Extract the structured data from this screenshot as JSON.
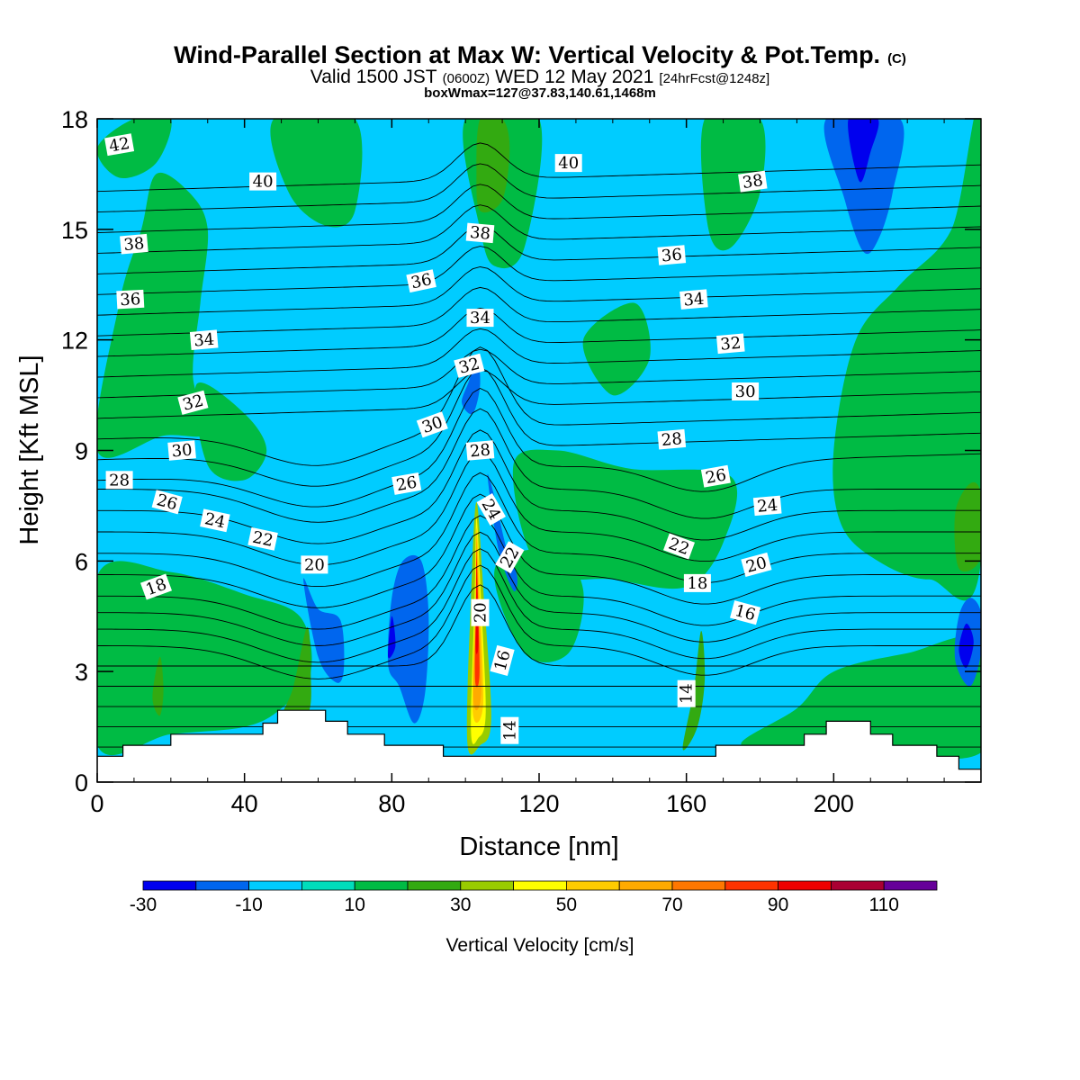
{
  "header": {
    "title_main": "Wind-Parallel Section at Max W: Vertical Velocity & Pot.Temp.",
    "title_mark": "(C)",
    "valid_a": "Valid 1500 JST",
    "valid_b": "(0600Z)",
    "valid_c": "WED 12 May 2021",
    "valid_d": "[24hrFcst@1248z]",
    "box_info": "boxWmax=127@37.83,140.61,1468m"
  },
  "colorbar": {
    "title": "Vertical Velocity [cm/s]",
    "colors": [
      "#0000ee",
      "#0066ee",
      "#00ccff",
      "#00ddbb",
      "#00bb44",
      "#33aa11",
      "#99cc00",
      "#ffff00",
      "#ffcc00",
      "#ffaa00",
      "#ff7700",
      "#ff3300",
      "#ee0000",
      "#aa0033",
      "#660099"
    ],
    "tick_labels": [
      "-30",
      "-10",
      "10",
      "30",
      "50",
      "70",
      "90",
      "110"
    ],
    "tick_values": [
      -30,
      -10,
      10,
      30,
      50,
      70,
      90,
      110
    ]
  },
  "chart_data": {
    "type": "heatmap",
    "xlabel": "Distance [nm]",
    "ylabel": "Height [Kft MSL]",
    "xlim": [
      0,
      240
    ],
    "ylim": [
      0,
      18
    ],
    "xticks": [
      "0",
      "40",
      "80",
      "120",
      "160",
      "200"
    ],
    "xtick_values": [
      0,
      40,
      80,
      120,
      160,
      200
    ],
    "yticks": [
      "0",
      "3",
      "6",
      "9",
      "12",
      "15",
      "18"
    ],
    "ytick_values": [
      0,
      3,
      6,
      9,
      12,
      15,
      18
    ],
    "background_color": "#00ccff",
    "terrain_steps": [
      [
        0,
        0.7
      ],
      [
        7,
        0.7
      ],
      [
        7,
        1.0
      ],
      [
        20,
        1.0
      ],
      [
        20,
        1.3
      ],
      [
        45,
        1.3
      ],
      [
        45,
        1.6
      ],
      [
        49,
        1.6
      ],
      [
        49,
        1.95
      ],
      [
        62,
        1.95
      ],
      [
        62,
        1.65
      ],
      [
        68,
        1.65
      ],
      [
        68,
        1.3
      ],
      [
        78,
        1.3
      ],
      [
        78,
        1.0
      ],
      [
        94,
        1.0
      ],
      [
        94,
        0.7
      ],
      [
        168,
        0.7
      ],
      [
        168,
        1.0
      ],
      [
        192,
        1.0
      ],
      [
        192,
        1.3
      ],
      [
        198,
        1.3
      ],
      [
        198,
        1.65
      ],
      [
        210,
        1.65
      ],
      [
        210,
        1.3
      ],
      [
        216,
        1.3
      ],
      [
        216,
        1.0
      ],
      [
        228,
        1.0
      ],
      [
        228,
        0.7
      ],
      [
        234,
        0.7
      ],
      [
        234,
        0.35
      ],
      [
        240,
        0.35
      ]
    ],
    "wind_cells": [
      {
        "w": 15,
        "pts": [
          [
            0,
            1
          ],
          [
            0,
            5.6
          ],
          [
            20,
            5.7
          ],
          [
            40,
            5.1
          ],
          [
            55,
            4.5
          ],
          [
            58,
            3
          ],
          [
            50,
            2
          ],
          [
            40,
            1.5
          ],
          [
            20,
            1.3
          ]
        ]
      },
      {
        "w": 15,
        "pts": [
          [
            0,
            9
          ],
          [
            6,
            13
          ],
          [
            12,
            15
          ],
          [
            16,
            16.5
          ],
          [
            25,
            16
          ],
          [
            30,
            15
          ],
          [
            28,
            13
          ],
          [
            26,
            11
          ],
          [
            30,
            9.5
          ],
          [
            18,
            9.4
          ]
        ]
      },
      {
        "w": 15,
        "pts": [
          [
            48,
            18
          ],
          [
            70,
            18
          ],
          [
            70,
            15.5
          ],
          [
            62,
            15.1
          ],
          [
            52,
            16
          ]
        ]
      },
      {
        "w": 15,
        "pts": [
          [
            27,
            10.8
          ],
          [
            40,
            10
          ],
          [
            46,
            9
          ],
          [
            40,
            8.2
          ],
          [
            30,
            8.6
          ]
        ]
      },
      {
        "w": 15,
        "pts": [
          [
            0,
            17.2
          ],
          [
            10,
            18
          ],
          [
            20,
            18
          ],
          [
            16,
            16.8
          ],
          [
            6,
            16.4
          ]
        ]
      },
      {
        "w": 15,
        "pts": [
          [
            100,
            18
          ],
          [
            120,
            18
          ],
          [
            116,
            14.5
          ],
          [
            108,
            14
          ],
          [
            104,
            15
          ]
        ]
      },
      {
        "w": 15,
        "pts": [
          [
            113,
            8.6
          ],
          [
            125,
            9
          ],
          [
            145,
            8.5
          ],
          [
            172,
            8.3
          ],
          [
            170,
            6.5
          ],
          [
            160,
            5.3
          ],
          [
            140,
            5.5
          ],
          [
            120,
            5.8
          ]
        ]
      },
      {
        "w": 15,
        "pts": [
          [
            108,
            5.8
          ],
          [
            124,
            6.3
          ],
          [
            132,
            5.2
          ],
          [
            128,
            3.5
          ],
          [
            116,
            3.5
          ]
        ]
      },
      {
        "w": 15,
        "pts": [
          [
            165,
            18
          ],
          [
            180,
            18
          ],
          [
            180,
            16
          ],
          [
            172,
            14.5
          ],
          [
            166,
            15
          ]
        ]
      },
      {
        "w": 15,
        "pts": [
          [
            200,
            9
          ],
          [
            206,
            12
          ],
          [
            218,
            13.5
          ],
          [
            232,
            15
          ],
          [
            240,
            18
          ],
          [
            240,
            6
          ],
          [
            226,
            5.5
          ],
          [
            212,
            6
          ],
          [
            202,
            7
          ]
        ]
      },
      {
        "w": 15,
        "pts": [
          [
            175,
            1
          ],
          [
            190,
            2
          ],
          [
            200,
            3
          ],
          [
            220,
            3.5
          ],
          [
            240,
            3.8
          ],
          [
            240,
            0.8
          ],
          [
            200,
            1
          ]
        ]
      },
      {
        "w": 15,
        "pts": [
          [
            132,
            12
          ],
          [
            146,
            13
          ],
          [
            150,
            11.5
          ],
          [
            140,
            10.5
          ]
        ]
      },
      {
        "w": 25,
        "pts": [
          [
            48,
            1.3
          ],
          [
            53,
            2.5
          ],
          [
            57,
            4.2
          ],
          [
            58,
            3.0
          ],
          [
            57,
            1.8
          ]
        ]
      },
      {
        "w": 25,
        "pts": [
          [
            15,
            2.3
          ],
          [
            17,
            3.4
          ],
          [
            18,
            2.5
          ],
          [
            17,
            1.8
          ]
        ]
      },
      {
        "w": 25,
        "pts": [
          [
            104,
            15.5
          ],
          [
            110,
            15.8
          ],
          [
            112,
            17.2
          ],
          [
            110,
            18
          ],
          [
            104,
            18
          ],
          [
            103,
            16.5
          ]
        ]
      },
      {
        "w": 25,
        "pts": [
          [
            159,
            0.9
          ],
          [
            162,
            2.5
          ],
          [
            164,
            4.1
          ],
          [
            165,
            2.8
          ],
          [
            163,
            1.5
          ]
        ]
      },
      {
        "w": 25,
        "pts": [
          [
            234,
            5.8
          ],
          [
            240,
            6.1
          ],
          [
            240,
            7.8
          ],
          [
            237,
            8.1
          ],
          [
            233,
            7.3
          ]
        ]
      },
      {
        "w": -15,
        "pts": [
          [
            79,
            3.2
          ],
          [
            80,
            5
          ],
          [
            83,
            6
          ],
          [
            88,
            6
          ],
          [
            90,
            4.5
          ],
          [
            89,
            2.4
          ],
          [
            86,
            1.6
          ],
          [
            82,
            2.6
          ]
        ]
      },
      {
        "w": -15,
        "pts": [
          [
            56,
            5.5
          ],
          [
            60,
            4.7
          ],
          [
            66,
            4.4
          ],
          [
            67,
            3.1
          ],
          [
            65,
            2.7
          ],
          [
            60,
            3.4
          ]
        ]
      },
      {
        "w": -15,
        "pts": [
          [
            99,
            10.3
          ],
          [
            101,
            10.9
          ],
          [
            103,
            11.6
          ],
          [
            104,
            10.8
          ],
          [
            102,
            10
          ]
        ]
      },
      {
        "w": -15,
        "pts": [
          [
            106,
            8.3
          ],
          [
            108,
            7.7
          ],
          [
            111,
            6.4
          ],
          [
            114,
            5.6
          ],
          [
            113,
            5.2
          ],
          [
            109,
            6.3
          ]
        ]
      },
      {
        "w": -15,
        "pts": [
          [
            198,
            18
          ],
          [
            218,
            18
          ],
          [
            216,
            16
          ],
          [
            212,
            14.7
          ],
          [
            208,
            14.4
          ],
          [
            203,
            15.8
          ]
        ]
      },
      {
        "w": -15,
        "pts": [
          [
            233,
            3.3
          ],
          [
            234,
            4.5
          ],
          [
            237,
            5
          ],
          [
            240,
            4.6
          ],
          [
            240,
            3.5
          ],
          [
            237,
            2.6
          ]
        ]
      },
      {
        "w": -25,
        "pts": [
          [
            204,
            18
          ],
          [
            212,
            18
          ],
          [
            210,
            17.1
          ],
          [
            207,
            16.3
          ]
        ]
      },
      {
        "w": -25,
        "pts": [
          [
            234,
            3.6
          ],
          [
            236,
            4.3
          ],
          [
            238,
            3.8
          ],
          [
            236,
            3.1
          ]
        ]
      },
      {
        "w": -25,
        "pts": [
          [
            79,
            3.4
          ],
          [
            80,
            4.5
          ],
          [
            81,
            3.7
          ]
        ]
      },
      {
        "w": 35,
        "pts": [
          [
            100.5,
            1.1
          ],
          [
            101.5,
            5
          ],
          [
            103,
            7.6
          ],
          [
            105,
            5
          ],
          [
            107,
            1.7
          ],
          [
            104,
            1.0
          ]
        ]
      },
      {
        "w": 45,
        "pts": [
          [
            101.5,
            1.4
          ],
          [
            102.5,
            5
          ],
          [
            103,
            7.2
          ],
          [
            104.2,
            5
          ],
          [
            105.5,
            1.9
          ],
          [
            103.5,
            1.2
          ]
        ]
      },
      {
        "w": 55,
        "pts": [
          [
            102,
            1.9
          ],
          [
            102.7,
            5
          ],
          [
            103,
            6.9
          ],
          [
            103.9,
            5
          ],
          [
            104.8,
            2.1
          ]
        ]
      },
      {
        "w": 65,
        "pts": [
          [
            102.2,
            2.2
          ],
          [
            102.8,
            5
          ],
          [
            103,
            6.6
          ],
          [
            103.6,
            5
          ],
          [
            104.3,
            2.4
          ]
        ]
      },
      {
        "w": 85,
        "pts": [
          [
            102.6,
            2.8
          ],
          [
            102.9,
            5
          ],
          [
            103,
            6.3
          ],
          [
            103.4,
            5
          ],
          [
            103.8,
            2.9
          ]
        ]
      },
      {
        "w": 95,
        "pts": [
          [
            102.8,
            3.6
          ],
          [
            102.95,
            5
          ],
          [
            103,
            6
          ],
          [
            103.25,
            5
          ],
          [
            103.5,
            3.7
          ]
        ]
      }
    ],
    "theta_contour_levels": [
      14,
      15,
      16,
      17,
      18,
      19,
      20,
      21,
      22,
      23,
      24,
      25,
      26,
      27,
      28,
      29,
      30,
      31,
      32,
      33,
      34,
      35,
      36,
      37,
      38,
      39,
      40,
      41,
      42
    ],
    "contour_labels": [
      {
        "text": "42",
        "x": 6,
        "y": 17.3,
        "angle": -10
      },
      {
        "text": "40",
        "x": 45,
        "y": 16.3,
        "angle": 0
      },
      {
        "text": "40",
        "x": 128,
        "y": 16.8,
        "angle": 0
      },
      {
        "text": "38",
        "x": 178,
        "y": 16.3,
        "angle": -8
      },
      {
        "text": "38",
        "x": 10,
        "y": 14.6,
        "angle": -5
      },
      {
        "text": "38",
        "x": 104,
        "y": 14.9,
        "angle": 5
      },
      {
        "text": "36",
        "x": 156,
        "y": 14.3,
        "angle": -5
      },
      {
        "text": "36",
        "x": 9,
        "y": 13.1,
        "angle": -3
      },
      {
        "text": "36",
        "x": 88,
        "y": 13.6,
        "angle": -12
      },
      {
        "text": "34",
        "x": 104,
        "y": 12.6,
        "angle": 0
      },
      {
        "text": "34",
        "x": 162,
        "y": 13.1,
        "angle": -5
      },
      {
        "text": "34",
        "x": 29,
        "y": 12.0,
        "angle": -5
      },
      {
        "text": "32",
        "x": 172,
        "y": 11.9,
        "angle": -5
      },
      {
        "text": "32",
        "x": 101,
        "y": 11.3,
        "angle": -15
      },
      {
        "text": "32",
        "x": 26,
        "y": 10.3,
        "angle": -15
      },
      {
        "text": "30",
        "x": 176,
        "y": 10.6,
        "angle": 0
      },
      {
        "text": "30",
        "x": 91,
        "y": 9.7,
        "angle": -20
      },
      {
        "text": "30",
        "x": 23,
        "y": 9.0,
        "angle": -5
      },
      {
        "text": "28",
        "x": 156,
        "y": 9.3,
        "angle": -5
      },
      {
        "text": "28",
        "x": 104,
        "y": 9.0,
        "angle": -5
      },
      {
        "text": "28",
        "x": 6,
        "y": 8.2,
        "angle": 0
      },
      {
        "text": "26",
        "x": 84,
        "y": 8.1,
        "angle": -10
      },
      {
        "text": "26",
        "x": 168,
        "y": 8.3,
        "angle": -10
      },
      {
        "text": "26",
        "x": 19,
        "y": 7.6,
        "angle": 15
      },
      {
        "text": "24",
        "x": 182,
        "y": 7.5,
        "angle": -5
      },
      {
        "text": "24",
        "x": 107,
        "y": 7.4,
        "angle": 60
      },
      {
        "text": "24",
        "x": 32,
        "y": 7.1,
        "angle": 12
      },
      {
        "text": "22",
        "x": 45,
        "y": 6.6,
        "angle": 12
      },
      {
        "text": "22",
        "x": 158,
        "y": 6.4,
        "angle": 20
      },
      {
        "text": "22",
        "x": 112,
        "y": 6.1,
        "angle": -60
      },
      {
        "text": "20",
        "x": 59,
        "y": 5.9,
        "angle": 0
      },
      {
        "text": "20",
        "x": 179,
        "y": 5.9,
        "angle": -15
      },
      {
        "text": "18",
        "x": 163,
        "y": 5.4,
        "angle": 0
      },
      {
        "text": "18",
        "x": 16,
        "y": 5.3,
        "angle": -20
      },
      {
        "text": "16",
        "x": 176,
        "y": 4.6,
        "angle": 15
      },
      {
        "text": "20",
        "x": 104,
        "y": 4.6,
        "angle": -90
      },
      {
        "text": "16",
        "x": 110,
        "y": 3.3,
        "angle": -75
      },
      {
        "text": "14",
        "x": 160,
        "y": 2.4,
        "angle": -90
      },
      {
        "text": "14",
        "x": 112,
        "y": 1.4,
        "angle": -90
      }
    ]
  }
}
